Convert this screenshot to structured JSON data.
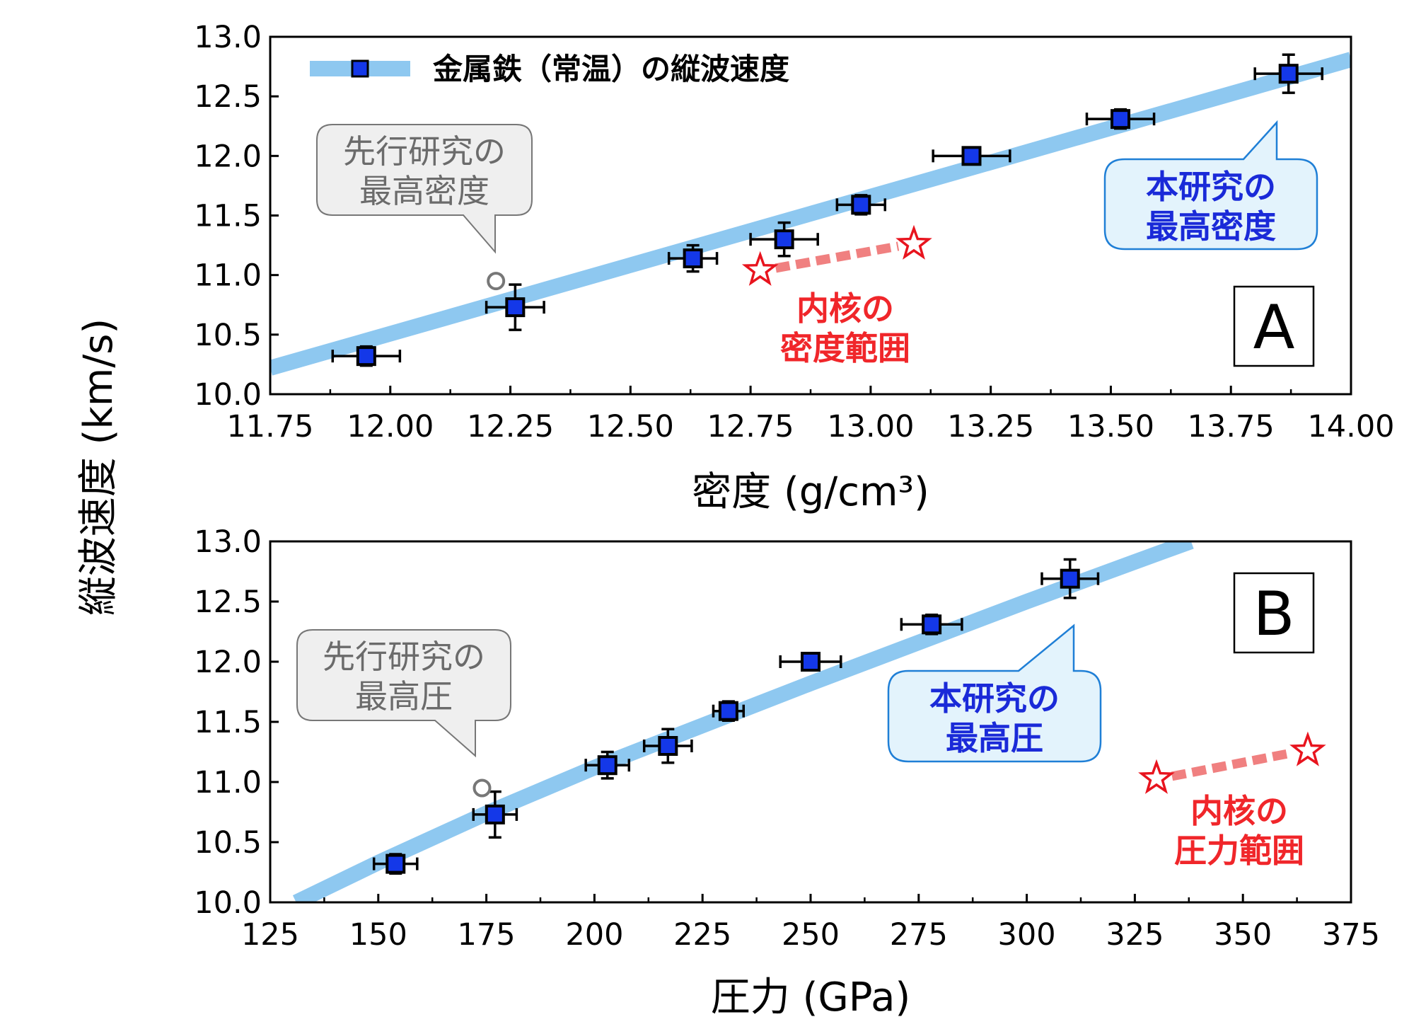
{
  "y_axis_title": "縦波速度 (km/s)",
  "legend_label": "金属鉄（常温）の縦波速度",
  "colors": {
    "fit_line": "#8ec8f0",
    "marker": "#1438e8",
    "star": "#e8141e",
    "star_dash": "#f08080",
    "callout_gray_bg": "#efefef",
    "callout_blue_bg": "#e3f3fc",
    "callout_blue_border": "#1f7fd6"
  },
  "panel_a": {
    "letter": "A",
    "callout_prev": [
      "先行研究の",
      "最高密度"
    ],
    "callout_this": [
      "本研究の",
      "最高密度"
    ],
    "core_range": [
      "内核の",
      "密度範囲"
    ]
  },
  "panel_b": {
    "letter": "B",
    "callout_prev": [
      "先行研究の",
      "最高圧"
    ],
    "callout_this": [
      "本研究の",
      "最高圧"
    ],
    "core_range": [
      "内核の",
      "圧力範囲"
    ]
  },
  "chart_data": [
    {
      "type": "scatter",
      "panel": "A",
      "xlabel": "密度 (g/cm³)",
      "ylabel": "縦波速度 (km/s)",
      "xlim": [
        11.75,
        14.0
      ],
      "ylim": [
        10.0,
        13.0
      ],
      "xticks": [
        "11.75",
        "12.00",
        "12.25",
        "12.50",
        "12.75",
        "13.00",
        "13.25",
        "13.50",
        "13.75",
        "14.00"
      ],
      "yticks": [
        "10.0",
        "10.5",
        "11.0",
        "11.5",
        "12.0",
        "12.5",
        "13.0"
      ],
      "legend": "top-left",
      "series": [
        {
          "name": "金属鉄（常温）の縦波速度",
          "points": [
            {
              "x": 11.95,
              "y": 10.32,
              "xerr": 0.07,
              "yerr": 0.08
            },
            {
              "x": 12.26,
              "y": 10.73,
              "xerr": 0.06,
              "yerr": 0.19
            },
            {
              "x": 12.63,
              "y": 11.14,
              "xerr": 0.05,
              "yerr": 0.11
            },
            {
              "x": 12.82,
              "y": 11.3,
              "xerr": 0.07,
              "yerr": 0.14
            },
            {
              "x": 12.98,
              "y": 11.59,
              "xerr": 0.05,
              "yerr": 0.08
            },
            {
              "x": 13.21,
              "y": 12.0,
              "xerr": 0.08,
              "yerr": 0.07
            },
            {
              "x": 13.52,
              "y": 12.31,
              "xerr": 0.07,
              "yerr": 0.08
            },
            {
              "x": 13.87,
              "y": 12.69,
              "xerr": 0.07,
              "yerr": 0.16
            }
          ],
          "fit_line": {
            "x": [
              11.75,
              14.0
            ],
            "y": [
              10.22,
              12.81
            ]
          }
        }
      ],
      "previous_study_point": {
        "x": 12.22,
        "y": 10.95
      },
      "inner_core_range": {
        "x": [
          12.77,
          13.09
        ],
        "y": [
          11.04,
          11.26
        ]
      }
    },
    {
      "type": "scatter",
      "panel": "B",
      "xlabel": "圧力 (GPa)",
      "ylabel": "縦波速度 (km/s)",
      "xlim": [
        125,
        375
      ],
      "ylim": [
        10.0,
        13.0
      ],
      "xticks": [
        "125",
        "150",
        "175",
        "200",
        "225",
        "250",
        "275",
        "300",
        "325",
        "350",
        "375"
      ],
      "yticks": [
        "10.0",
        "10.5",
        "11.0",
        "11.5",
        "12.0",
        "12.5",
        "13.0"
      ],
      "series": [
        {
          "name": "金属鉄（常温）の縦波速度",
          "points": [
            {
              "x": 154,
              "y": 10.32,
              "xerr": 5,
              "yerr": 0.08
            },
            {
              "x": 177,
              "y": 10.73,
              "xerr": 5,
              "yerr": 0.19
            },
            {
              "x": 203,
              "y": 11.14,
              "xerr": 5,
              "yerr": 0.11
            },
            {
              "x": 217,
              "y": 11.3,
              "xerr": 5.5,
              "yerr": 0.14
            },
            {
              "x": 231,
              "y": 11.59,
              "xerr": 3.5,
              "yerr": 0.08
            },
            {
              "x": 250,
              "y": 12.0,
              "xerr": 7,
              "yerr": 0.07
            },
            {
              "x": 278,
              "y": 12.31,
              "xerr": 7,
              "yerr": 0.08
            },
            {
              "x": 310,
              "y": 12.69,
              "xerr": 6.5,
              "yerr": 0.16
            }
          ],
          "fit_curve": {
            "x": [
              131,
              150,
              175,
              200,
              225,
              250,
              275,
              300,
              325,
              338
            ],
            "y": [
              10.0,
              10.33,
              10.74,
              11.12,
              11.47,
              11.82,
              12.16,
              12.5,
              12.83,
              13.0
            ]
          }
        }
      ],
      "previous_study_point": {
        "x": 174,
        "y": 10.95
      },
      "inner_core_range": {
        "x": [
          330,
          365
        ],
        "y": [
          11.03,
          11.26
        ]
      }
    }
  ]
}
